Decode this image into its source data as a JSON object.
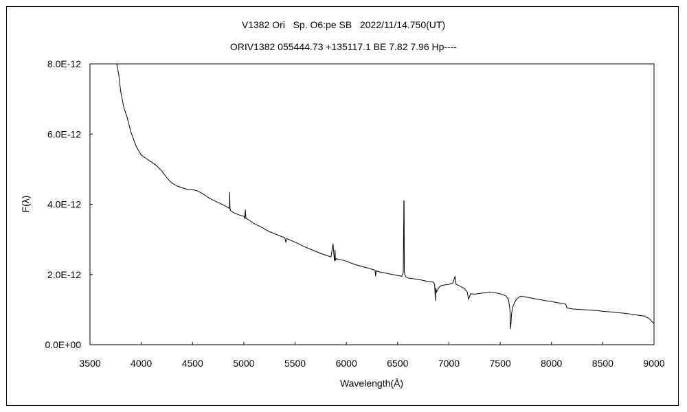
{
  "chart_data": {
    "type": "line",
    "title_line1": "V1382 Ori   Sp. O6:pe SB   2022/11/14.750(UT)",
    "title_line2": "ORIV1382 055444.73 +135117.1 BE 7.82 7.96 Hp----",
    "xlabel": "Wavelength(Å)",
    "ylabel": "F(λ)",
    "xlim": [
      3500,
      9000
    ],
    "ylim": [
      0,
      8e-12
    ],
    "x_ticks": [
      3500,
      4000,
      4500,
      5000,
      5500,
      6000,
      6500,
      7000,
      7500,
      8000,
      8500,
      9000
    ],
    "x_tick_labels": [
      "3500",
      "4000",
      "4500",
      "5000",
      "5500",
      "6000",
      "6500",
      "7000",
      "7500",
      "8000",
      "8500",
      "9000"
    ],
    "y_ticks": [
      0,
      2e-12,
      4e-12,
      6e-12,
      8e-12
    ],
    "y_tick_labels": [
      "0.0E+00",
      "2.0E-12",
      "4.0E-12",
      "6.0E-12",
      "8.0E-12"
    ],
    "grid": false,
    "legend": "none",
    "line_color": "#000000",
    "series": [
      {
        "x": [
          3720,
          3760,
          3780,
          3800,
          3830,
          3860,
          3900,
          3950,
          4000,
          4050,
          4100,
          4150,
          4200,
          4250,
          4300,
          4350,
          4400,
          4450,
          4500,
          4550,
          4600,
          4650,
          4700,
          4750,
          4800,
          4850,
          4860,
          4862,
          4865,
          4870,
          4900,
          4950,
          5000,
          5010,
          5015,
          5020,
          5050,
          5100,
          5150,
          5200,
          5250,
          5300,
          5350,
          5400,
          5410,
          5420,
          5450,
          5500,
          5550,
          5600,
          5650,
          5700,
          5750,
          5800,
          5850,
          5870,
          5880,
          5885,
          5890,
          5893,
          5900,
          5950,
          6000,
          6050,
          6100,
          6150,
          6200,
          6250,
          6280,
          6285,
          6290,
          6300,
          6350,
          6400,
          6450,
          6500,
          6540,
          6555,
          6561,
          6563,
          6565,
          6570,
          6580,
          6600,
          6650,
          6700,
          6750,
          6800,
          6850,
          6860,
          6868,
          6870,
          6872,
          6880,
          6900,
          6920,
          6950,
          7000,
          7040,
          7060,
          7070,
          7100,
          7150,
          7180,
          7190,
          7200,
          7210,
          7250,
          7300,
          7350,
          7400,
          7450,
          7500,
          7550,
          7580,
          7595,
          7600,
          7605,
          7610,
          7620,
          7640,
          7660,
          7680,
          7700,
          7750,
          7800,
          7850,
          7900,
          7950,
          8000,
          8050,
          8100,
          8140,
          8150,
          8200,
          8250,
          8300,
          8350,
          8400,
          8450,
          8500,
          8550,
          8600,
          8650,
          8700,
          8750,
          8800,
          8850,
          8900,
          8950,
          9000
        ],
        "y": [
          8.1e-12,
          8e-12,
          7.7e-12,
          7.2e-12,
          6.75e-12,
          6.5e-12,
          6.05e-12,
          5.65e-12,
          5.4e-12,
          5.3e-12,
          5.2e-12,
          5.1e-12,
          4.95e-12,
          4.75e-12,
          4.6e-12,
          4.52e-12,
          4.47e-12,
          4.42e-12,
          4.42e-12,
          4.38e-12,
          4.3e-12,
          4.2e-12,
          4.12e-12,
          4.05e-12,
          3.98e-12,
          3.9e-12,
          3.88e-12,
          4.35e-12,
          3.9e-12,
          3.82e-12,
          3.76e-12,
          3.7e-12,
          3.66e-12,
          3.6e-12,
          3.85e-12,
          3.6e-12,
          3.55e-12,
          3.45e-12,
          3.38e-12,
          3.3e-12,
          3.22e-12,
          3.16e-12,
          3.1e-12,
          3.05e-12,
          2.92e-12,
          3.02e-12,
          2.98e-12,
          2.92e-12,
          2.85e-12,
          2.78e-12,
          2.72e-12,
          2.66e-12,
          2.6e-12,
          2.55e-12,
          2.5e-12,
          2.88e-12,
          2.5e-12,
          2.38e-12,
          2.7e-12,
          2.4e-12,
          2.45e-12,
          2.42e-12,
          2.38e-12,
          2.32e-12,
          2.27e-12,
          2.23e-12,
          2.19e-12,
          2.15e-12,
          2.12e-12,
          1.95e-12,
          2.1e-12,
          2.09e-12,
          2.06e-12,
          2.03e-12,
          2e-12,
          1.97e-12,
          1.95e-12,
          2.05e-12,
          4.1e-12,
          4.1e-12,
          2.1e-12,
          2e-12,
          1.93e-12,
          1.9e-12,
          1.88e-12,
          1.86e-12,
          1.83e-12,
          1.8e-12,
          1.78e-12,
          1.72e-12,
          1.25e-12,
          1.4e-12,
          1.62e-12,
          1.5e-12,
          1.62e-12,
          1.68e-12,
          1.7e-12,
          1.72e-12,
          1.76e-12,
          1.95e-12,
          1.72e-12,
          1.68e-12,
          1.6e-12,
          1.5e-12,
          1.3e-12,
          1.35e-12,
          1.45e-12,
          1.44e-12,
          1.46e-12,
          1.48e-12,
          1.5e-12,
          1.48e-12,
          1.45e-12,
          1.4e-12,
          1.3e-12,
          1e-12,
          4.5e-13,
          6e-13,
          8.5e-13,
          1.05e-12,
          1.2e-12,
          1.3e-12,
          1.35e-12,
          1.38e-12,
          1.36e-12,
          1.33e-12,
          1.3e-12,
          1.28e-12,
          1.25e-12,
          1.23e-12,
          1.2e-12,
          1.18e-12,
          1.15e-12,
          1.05e-12,
          1.02e-12,
          1.01e-12,
          1e-12,
          9.9e-13,
          9.8e-13,
          9.7e-13,
          9.5e-13,
          9.4e-13,
          9.3e-13,
          9.1e-13,
          9e-13,
          8.8e-13,
          8.6e-13,
          8.4e-13,
          8.2e-13,
          7.5e-13,
          6e-13
        ]
      }
    ]
  }
}
